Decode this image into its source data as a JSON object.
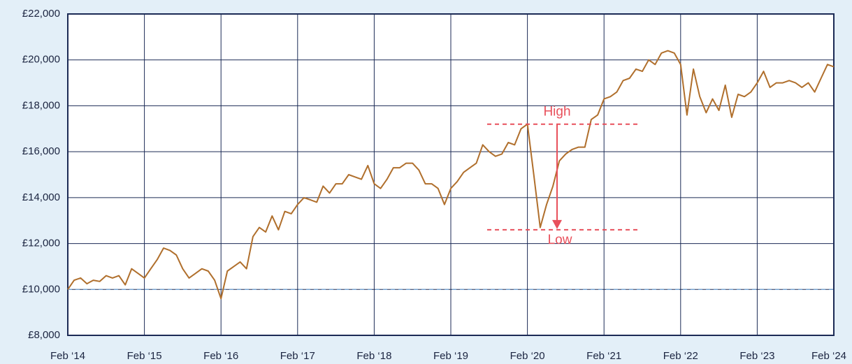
{
  "chart_data": {
    "type": "line",
    "categories": [
      "Feb ‘14",
      null,
      null,
      null,
      null,
      null,
      null,
      null,
      null,
      null,
      null,
      null,
      "Feb ‘15",
      null,
      null,
      null,
      null,
      null,
      null,
      null,
      null,
      null,
      null,
      null,
      "Feb ‘16",
      null,
      null,
      null,
      null,
      null,
      null,
      null,
      null,
      null,
      null,
      null,
      "Feb ‘17",
      null,
      null,
      null,
      null,
      null,
      null,
      null,
      null,
      null,
      null,
      null,
      "Feb ‘18",
      null,
      null,
      null,
      null,
      null,
      null,
      null,
      null,
      null,
      null,
      null,
      "Feb ‘19",
      null,
      null,
      null,
      null,
      null,
      null,
      null,
      null,
      null,
      null,
      null,
      "Feb ‘20",
      null,
      null,
      null,
      null,
      null,
      null,
      null,
      null,
      null,
      null,
      null,
      "Feb ‘21",
      null,
      null,
      null,
      null,
      null,
      null,
      null,
      null,
      null,
      null,
      null,
      "Feb ‘22",
      null,
      null,
      null,
      null,
      null,
      null,
      null,
      null,
      null,
      null,
      null,
      "Feb ‘23",
      null,
      null,
      null,
      null,
      null,
      null,
      null,
      null,
      null,
      null,
      null,
      "Feb ‘24"
    ],
    "values": [
      10000,
      10400,
      10500,
      10250,
      10400,
      10350,
      10600,
      10500,
      10600,
      10200,
      10900,
      10700,
      10500,
      10900,
      11300,
      11800,
      11700,
      11500,
      10900,
      10500,
      10700,
      10900,
      10800,
      10400,
      9600,
      10800,
      11000,
      11200,
      10900,
      12300,
      12700,
      12500,
      13200,
      12600,
      13400,
      13300,
      13700,
      14000,
      13900,
      13800,
      14500,
      14200,
      14600,
      14600,
      15000,
      14900,
      14800,
      15400,
      14600,
      14400,
      14800,
      15300,
      15300,
      15500,
      15500,
      15200,
      14600,
      14600,
      14400,
      13700,
      14400,
      14700,
      15100,
      15300,
      15500,
      16300,
      16000,
      15800,
      15900,
      16400,
      16300,
      17000,
      17200,
      15000,
      12700,
      13700,
      14500,
      15600,
      15900,
      16100,
      16200,
      16200,
      17400,
      17600,
      18300,
      18400,
      18600,
      19100,
      19200,
      19600,
      19500,
      20000,
      19800,
      20300,
      20400,
      20300,
      19800,
      17600,
      19600,
      18400,
      17700,
      18300,
      17800,
      18900,
      17500,
      18500,
      18400,
      18600,
      19000,
      19500,
      18800,
      19000,
      19000,
      19100,
      19000,
      18800,
      19000,
      18600,
      19200,
      19800,
      19700
    ],
    "color": "#b06f2c",
    "ylim": [
      8000,
      22000
    ],
    "yticks": [
      {
        "value": 8000,
        "label": "£8,000"
      },
      {
        "value": 10000,
        "label": "£10,000"
      },
      {
        "value": 12000,
        "label": "£12,000"
      },
      {
        "value": 14000,
        "label": "£14,000"
      },
      {
        "value": 16000,
        "label": "£16,000"
      },
      {
        "value": 18000,
        "label": "£18,000"
      },
      {
        "value": 20000,
        "label": "£20,000"
      },
      {
        "value": 22000,
        "label": "£22,000"
      }
    ],
    "grid": true,
    "reference_line": 10000,
    "annotations": [
      {
        "label": "High",
        "value": 17200
      },
      {
        "label": "Low",
        "value": 12600
      }
    ]
  }
}
